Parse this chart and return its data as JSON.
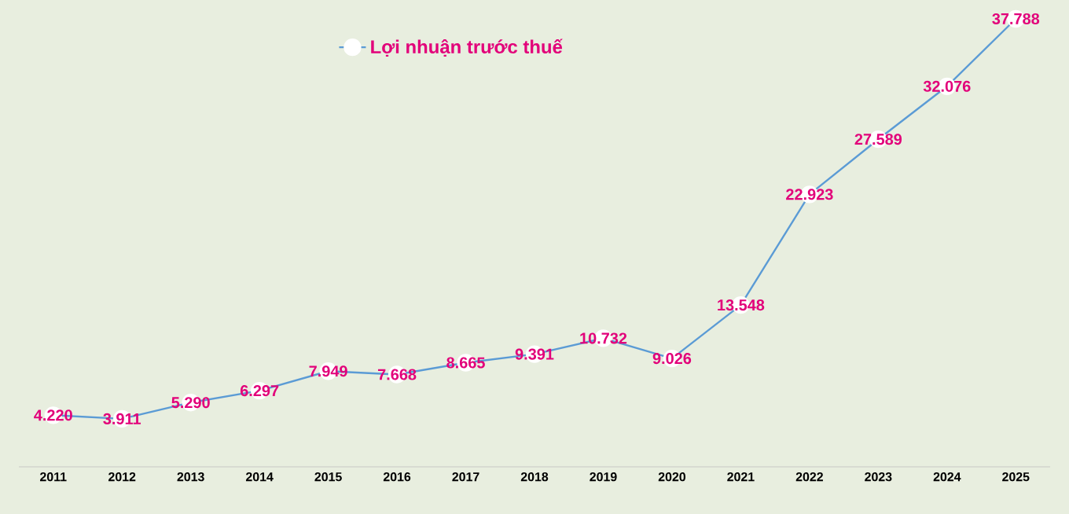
{
  "chart_data": {
    "type": "line",
    "categories": [
      "2011",
      "2012",
      "2013",
      "2014",
      "2015",
      "2016",
      "2017",
      "2018",
      "2019",
      "2020",
      "2021",
      "2022",
      "2023",
      "2024",
      "2025"
    ],
    "series": [
      {
        "name": "Lợi nhuận trước thuế",
        "color": "#5b9bd5",
        "values": [
          4220,
          3911,
          5290,
          6297,
          7949,
          7668,
          8665,
          9391,
          10732,
          9026,
          13548,
          22923,
          27589,
          32076,
          37788
        ],
        "value_labels": [
          "4.220",
          "3.911",
          "5.290",
          "6.297",
          "7.949",
          "7.668",
          "8.665",
          "9.391",
          "10.732",
          "9.026",
          "13.548",
          "22.923",
          "27.589",
          "32.076",
          "37.788"
        ]
      }
    ],
    "legend": "top",
    "marker": "circle",
    "line_style": "solid",
    "grid": false
  }
}
